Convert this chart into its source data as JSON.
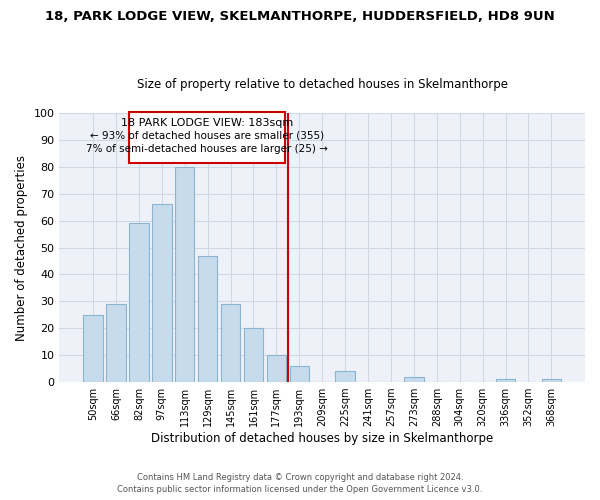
{
  "title": "18, PARK LODGE VIEW, SKELMANTHORPE, HUDDERSFIELD, HD8 9UN",
  "subtitle": "Size of property relative to detached houses in Skelmanthorpe",
  "xlabel": "Distribution of detached houses by size in Skelmanthorpe",
  "ylabel": "Number of detached properties",
  "bar_labels": [
    "50sqm",
    "66sqm",
    "82sqm",
    "97sqm",
    "113sqm",
    "129sqm",
    "145sqm",
    "161sqm",
    "177sqm",
    "193sqm",
    "209sqm",
    "225sqm",
    "241sqm",
    "257sqm",
    "273sqm",
    "288sqm",
    "304sqm",
    "320sqm",
    "336sqm",
    "352sqm",
    "368sqm"
  ],
  "bar_heights": [
    25,
    29,
    59,
    66,
    80,
    47,
    29,
    20,
    10,
    6,
    0,
    4,
    0,
    0,
    2,
    0,
    0,
    0,
    1,
    0,
    1
  ],
  "bar_color": "#c6dcec",
  "bar_edge_color": "#8ab4cf",
  "vline_color": "#cc0000",
  "annotation_title": "18 PARK LODGE VIEW: 183sqm",
  "annotation_line1": "← 93% of detached houses are smaller (355)",
  "annotation_line2": "7% of semi-detached houses are larger (25) →",
  "ylim": [
    0,
    100
  ],
  "yticks": [
    0,
    10,
    20,
    30,
    40,
    50,
    60,
    70,
    80,
    90,
    100
  ],
  "footer1": "Contains HM Land Registry data © Crown copyright and database right 2024.",
  "footer2": "Contains public sector information licensed under the Open Government Licence v3.0.",
  "grid_color": "#d0d8e8",
  "bg_color": "#eef2f8"
}
